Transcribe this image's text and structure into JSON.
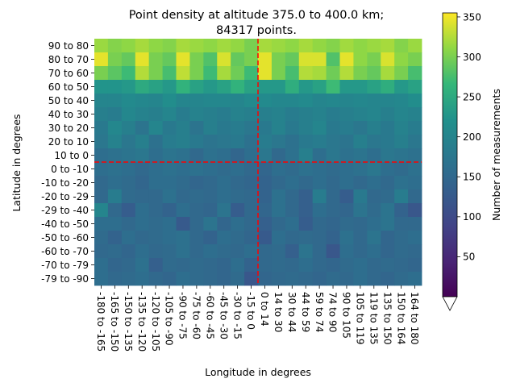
{
  "chart_data": {
    "type": "heatmap",
    "title": "Point density at altitude 375.0 to 400.0 km;",
    "subtitle": "84317 points.",
    "xlabel": "Longitude in degrees",
    "ylabel": "Latitude in degrees",
    "colorbar_label": "Number of measurements",
    "colormap": "viridis",
    "color_range": [
      0,
      355
    ],
    "colorbar_ticks": [
      50,
      100,
      150,
      200,
      250,
      300,
      350
    ],
    "colorbar_extend": "min",
    "x_categories": [
      "-180 to -165",
      "-165 to -150",
      "-150 to -135",
      "-135 to -120",
      "-120 to -105",
      "-105 to -90",
      "-90 to -75",
      "-75 to -60",
      "-60 to -45",
      "-45 to -30",
      "-30 to -15",
      "-15 to 0",
      "0 to 14",
      "14 to 30",
      "30 to 44",
      "44 to 59",
      "59 to 74",
      "74 to 90",
      "90 to 105",
      "105 to 119",
      "119 to 135",
      "135 to 150",
      "150 to 164",
      "164 to 180"
    ],
    "y_categories": [
      "90 to 80",
      "80 to 70",
      "70 to 60",
      "60 to 50",
      "50 to 40",
      "40 to 30",
      "30 to 20",
      "20 to 10",
      "10 to 0",
      "0 to -10",
      "-10 to -20",
      "-20 to -29",
      "-29 to -40",
      "-40 to -50",
      "-50 to -60",
      "-60 to -70",
      "-70 to -79",
      "-79 to -90"
    ],
    "values": [
      [
        315,
        305,
        310,
        320,
        310,
        305,
        320,
        315,
        310,
        318,
        312,
        300,
        320,
        315,
        310,
        320,
        312,
        305,
        318,
        310,
        315,
        320,
        305,
        315
      ],
      [
        345,
        300,
        290,
        345,
        300,
        290,
        345,
        300,
        280,
        340,
        290,
        300,
        345,
        300,
        290,
        340,
        340,
        280,
        345,
        310,
        300,
        340,
        310,
        300
      ],
      [
        300,
        285,
        270,
        325,
        300,
        275,
        330,
        300,
        270,
        320,
        295,
        270,
        345,
        300,
        275,
        325,
        320,
        295,
        325,
        300,
        290,
        320,
        300,
        275
      ],
      [
        225,
        225,
        230,
        250,
        240,
        230,
        260,
        240,
        230,
        240,
        260,
        240,
        230,
        230,
        255,
        230,
        240,
        270,
        230,
        230,
        240,
        255,
        230,
        240
      ],
      [
        200,
        200,
        210,
        205,
        200,
        215,
        200,
        200,
        205,
        205,
        200,
        210,
        210,
        205,
        205,
        210,
        200,
        205,
        200,
        205,
        200,
        200,
        205,
        215
      ],
      [
        190,
        185,
        205,
        195,
        190,
        200,
        185,
        195,
        190,
        185,
        195,
        190,
        190,
        195,
        185,
        190,
        195,
        185,
        190,
        195,
        200,
        190,
        200,
        195
      ],
      [
        180,
        205,
        190,
        170,
        200,
        180,
        190,
        170,
        190,
        180,
        185,
        175,
        180,
        195,
        180,
        190,
        200,
        180,
        185,
        175,
        190,
        180,
        195,
        185
      ],
      [
        175,
        195,
        175,
        190,
        165,
        185,
        190,
        180,
        170,
        175,
        180,
        165,
        185,
        175,
        165,
        180,
        185,
        175,
        170,
        190,
        175,
        180,
        190,
        175
      ],
      [
        160,
        165,
        170,
        175,
        160,
        170,
        165,
        150,
        165,
        160,
        145,
        160,
        175,
        150,
        165,
        190,
        160,
        175,
        165,
        170,
        160,
        175,
        170,
        165
      ],
      [
        160,
        165,
        160,
        150,
        160,
        165,
        160,
        165,
        160,
        155,
        160,
        150,
        145,
        160,
        155,
        165,
        160,
        155,
        160,
        165,
        175,
        160,
        155,
        165
      ],
      [
        150,
        160,
        155,
        145,
        160,
        160,
        155,
        145,
        150,
        160,
        150,
        145,
        140,
        150,
        160,
        150,
        160,
        150,
        160,
        150,
        160,
        150,
        165,
        160
      ],
      [
        150,
        185,
        155,
        150,
        150,
        165,
        150,
        155,
        150,
        160,
        155,
        150,
        140,
        165,
        150,
        135,
        185,
        150,
        130,
        180,
        150,
        155,
        185,
        150
      ],
      [
        200,
        150,
        130,
        160,
        150,
        140,
        160,
        150,
        145,
        170,
        130,
        150,
        145,
        165,
        150,
        135,
        160,
        150,
        145,
        170,
        155,
        170,
        140,
        120
      ],
      [
        160,
        160,
        150,
        160,
        155,
        160,
        125,
        150,
        170,
        145,
        160,
        150,
        135,
        150,
        160,
        130,
        150,
        145,
        155,
        150,
        160,
        170,
        150,
        150
      ],
      [
        155,
        140,
        160,
        150,
        155,
        160,
        165,
        150,
        140,
        160,
        155,
        145,
        125,
        160,
        150,
        155,
        150,
        140,
        165,
        150,
        170,
        145,
        155,
        160
      ],
      [
        150,
        155,
        145,
        160,
        150,
        155,
        165,
        150,
        160,
        155,
        150,
        160,
        150,
        155,
        135,
        170,
        150,
        120,
        160,
        150,
        160,
        145,
        155,
        150
      ],
      [
        160,
        145,
        150,
        165,
        135,
        155,
        150,
        155,
        150,
        145,
        160,
        140,
        150,
        155,
        150,
        160,
        150,
        145,
        155,
        160,
        150,
        155,
        150,
        145
      ],
      [
        160,
        150,
        155,
        160,
        150,
        145,
        160,
        155,
        150,
        145,
        155,
        120,
        145,
        150,
        155,
        150,
        145,
        155,
        150,
        160,
        150,
        145,
        155,
        160
      ]
    ],
    "reference_lines": {
      "x_boundary_value": 0,
      "y_boundary_value": 0,
      "color": "#ff0000",
      "style": "dashed"
    }
  }
}
